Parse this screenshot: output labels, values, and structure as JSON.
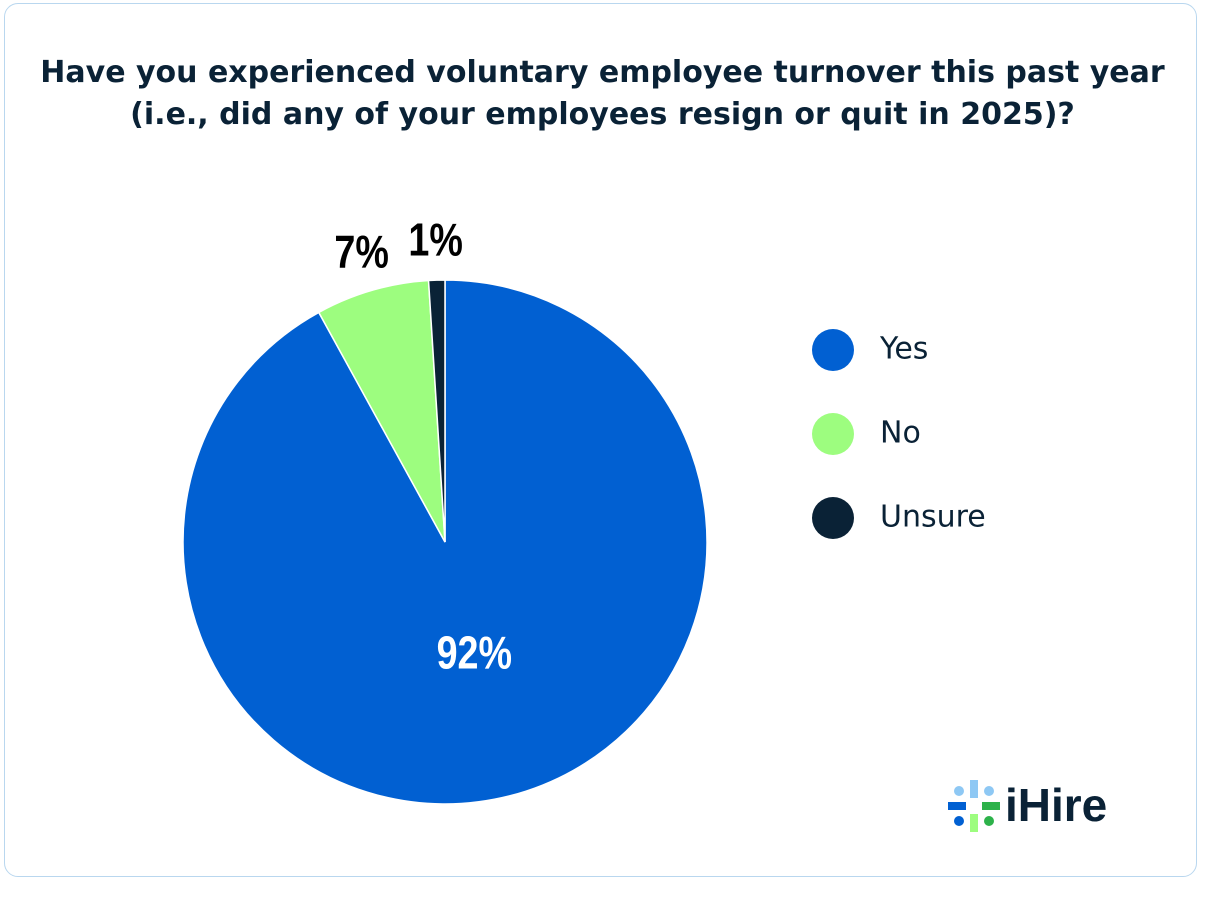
{
  "chart_data": {
    "type": "pie",
    "title": "Have you experienced voluntary employee turnover this past year (i.e., did any of your employees resign or quit in 2025)?",
    "categories": [
      "Yes",
      "No",
      "Unsure"
    ],
    "values": [
      92,
      7,
      1
    ],
    "value_labels": [
      "92%",
      "7%",
      "1%"
    ],
    "colors": [
      "#0160d2",
      "#9dfd7f",
      "#0a2236"
    ],
    "legend": "right"
  },
  "logo": "iHire"
}
